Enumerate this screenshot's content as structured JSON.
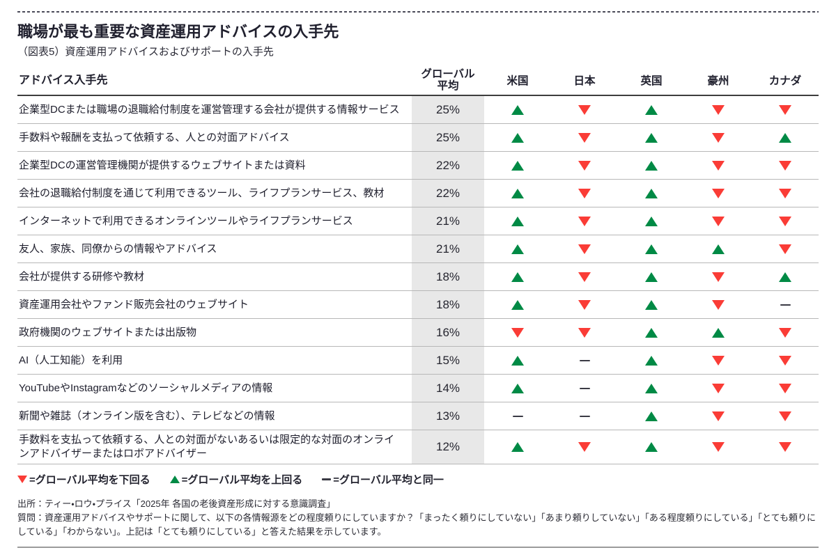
{
  "page": {
    "title": "職場が最も重要な資産運用アドバイスの入手先",
    "subtitle": "（図表5）資産運用アドバイスおよびサポートの入手先"
  },
  "colors": {
    "above_average_green": "#008a45",
    "below_average_red": "#fa3c36",
    "average_column_bg": "#e8e8e8",
    "text": "#20202e"
  },
  "table": {
    "label_header": "アドバイス入手先",
    "avg_header": "グローバル\n平均",
    "countries": [
      "米国",
      "日本",
      "英国",
      "豪州",
      "カナダ"
    ],
    "rows": [
      {
        "label": "企業型DCまたは職場の退職給付制度を運営管理する会社が提供する情報サービス",
        "avg": "25%",
        "marks": [
          "up",
          "down",
          "up",
          "down",
          "down"
        ]
      },
      {
        "label": "手数料や報酬を支払って依頼する、人との対面アドバイス",
        "avg": "25%",
        "marks": [
          "up",
          "down",
          "up",
          "down",
          "up"
        ]
      },
      {
        "label": "企業型DCの運営管理機関が提供するウェブサイトまたは資料",
        "avg": "22%",
        "marks": [
          "up",
          "down",
          "up",
          "down",
          "down"
        ]
      },
      {
        "label": "会社の退職給付制度を通じて利用できるツール、ライフプランサービス、教材",
        "avg": "22%",
        "marks": [
          "up",
          "down",
          "up",
          "down",
          "down"
        ]
      },
      {
        "label": "インターネットで利用できるオンラインツールやライフプランサービス",
        "avg": "21%",
        "marks": [
          "up",
          "down",
          "up",
          "down",
          "down"
        ]
      },
      {
        "label": "友人、家族、同僚からの情報やアドバイス",
        "avg": "21%",
        "marks": [
          "up",
          "down",
          "up",
          "up",
          "down"
        ]
      },
      {
        "label": "会社が提供する研修や教材",
        "avg": "18%",
        "marks": [
          "up",
          "down",
          "up",
          "down",
          "up"
        ]
      },
      {
        "label": "資産運用会社やファンド販売会社のウェブサイト",
        "avg": "18%",
        "marks": [
          "up",
          "down",
          "up",
          "down",
          "dash"
        ]
      },
      {
        "label": "政府機関のウェブサイトまたは出版物",
        "avg": "16%",
        "marks": [
          "down",
          "down",
          "up",
          "up",
          "down"
        ]
      },
      {
        "label": "AI（人工知能）を利用",
        "avg": "15%",
        "marks": [
          "up",
          "dash",
          "up",
          "down",
          "down"
        ]
      },
      {
        "label": "YouTubeやInstagramなどのソーシャルメディアの情報",
        "avg": "14%",
        "marks": [
          "up",
          "dash",
          "up",
          "down",
          "down"
        ]
      },
      {
        "label": "新聞や雑誌（オンライン版を含む）、テレビなどの情報",
        "avg": "13%",
        "marks": [
          "dash",
          "dash",
          "up",
          "down",
          "down"
        ]
      },
      {
        "label": "手数料を支払って依頼する、人との対面がないあるいは限定的な対面のオンラインアドバイザーまたはロボアドバイザー",
        "avg": "12%",
        "marks": [
          "up",
          "down",
          "up",
          "down",
          "down"
        ]
      }
    ]
  },
  "legend": {
    "items": [
      {
        "symbol": "down-triangle",
        "text": "=グローバル平均を下回る"
      },
      {
        "symbol": "up-triangle",
        "text": "=グローバル平均を上回る"
      },
      {
        "symbol": "dash",
        "text": "=グローバル平均と同一"
      }
    ]
  },
  "footer": {
    "source": "出所：ティー・ロウ・プライス「2025年 各国の老後資産形成に対する意識調査」",
    "question": "質問：資産運用アドバイスやサポートに関して、以下の各情報源をどの程度頼りにしていますか？「まったく頼りにしていない」「あまり頼りしていない」「ある程度頼りにしている」「とても頼りにしている」「わからない」。上記は「とても頼りにしている」と答えた結果を示しています。"
  }
}
